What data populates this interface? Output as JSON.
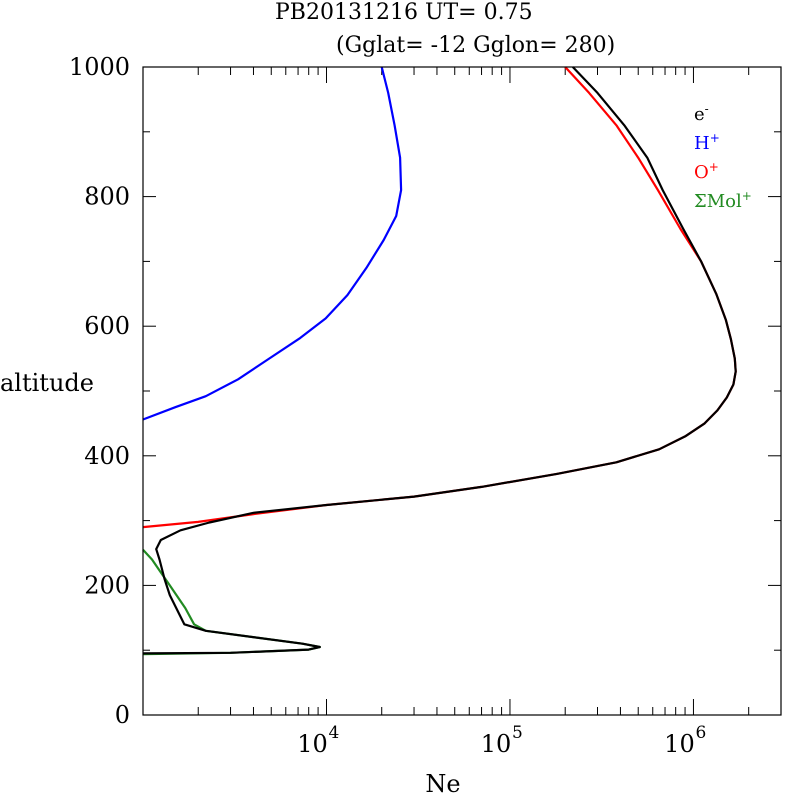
{
  "chart_data": {
    "type": "line",
    "title": "PB20131216   UT=  0.75",
    "subtitle": "(Gglat= -12   Gglon=  280)",
    "xlabel": "Ne",
    "ylabel": "altitude",
    "x_scale": "log",
    "xlim": [
      1000,
      3000000
    ],
    "ylim": [
      0,
      1000
    ],
    "y_ticks": [
      0,
      200,
      400,
      600,
      800,
      1000
    ],
    "x_ticks": [
      {
        "value": 10000,
        "base": "10",
        "exp": "4"
      },
      {
        "value": 100000,
        "base": "10",
        "exp": "5"
      },
      {
        "value": 1000000,
        "base": "10",
        "exp": "6"
      }
    ],
    "legend_position": "top-right",
    "series": [
      {
        "name": "e",
        "sup": "-",
        "color": "#000000",
        "points": [
          [
            1000,
            95
          ],
          [
            3000,
            96
          ],
          [
            8000,
            101
          ],
          [
            9200,
            105
          ],
          [
            7400,
            110
          ],
          [
            2200,
            130
          ],
          [
            1680,
            140
          ],
          [
            1400,
            185
          ],
          [
            1310,
            210
          ],
          [
            1230,
            240
          ],
          [
            1180,
            256
          ],
          [
            1250,
            270
          ],
          [
            1600,
            285
          ],
          [
            2300,
            297
          ],
          [
            4000,
            312
          ],
          [
            10000,
            324
          ],
          [
            30000,
            337
          ],
          [
            70000,
            352
          ],
          [
            180000,
            372
          ],
          [
            380000,
            390
          ],
          [
            650000,
            410
          ],
          [
            900000,
            430
          ],
          [
            1150000,
            450
          ],
          [
            1350000,
            470
          ],
          [
            1520000,
            490
          ],
          [
            1650000,
            510
          ],
          [
            1700000,
            530
          ],
          [
            1680000,
            550
          ],
          [
            1600000,
            580
          ],
          [
            1500000,
            610
          ],
          [
            1330000,
            650
          ],
          [
            1100000,
            700
          ],
          [
            880000,
            750
          ],
          [
            680000,
            810
          ],
          [
            560000,
            860
          ],
          [
            420000,
            910
          ],
          [
            300000,
            960
          ],
          [
            220000,
            1000
          ]
        ]
      },
      {
        "name": "H",
        "sup": "+",
        "color": "#0000ff",
        "points": [
          [
            1000,
            456
          ],
          [
            1500,
            475
          ],
          [
            2200,
            492
          ],
          [
            3300,
            518
          ],
          [
            4700,
            547
          ],
          [
            7200,
            582
          ],
          [
            9900,
            612
          ],
          [
            13000,
            648
          ],
          [
            16500,
            690
          ],
          [
            20500,
            733
          ],
          [
            24000,
            770
          ],
          [
            25500,
            810
          ],
          [
            25200,
            860
          ],
          [
            23500,
            910
          ],
          [
            21700,
            960
          ],
          [
            20000,
            1000
          ]
        ]
      },
      {
        "name": "O",
        "sup": "+",
        "color": "#ff0000",
        "points": [
          [
            1000,
            290
          ],
          [
            2000,
            298
          ],
          [
            4000,
            310
          ],
          [
            10000,
            324
          ],
          [
            30000,
            337
          ],
          [
            70000,
            352
          ],
          [
            180000,
            372
          ],
          [
            380000,
            390
          ],
          [
            650000,
            410
          ],
          [
            900000,
            430
          ],
          [
            1150000,
            450
          ],
          [
            1350000,
            470
          ],
          [
            1520000,
            490
          ],
          [
            1650000,
            510
          ],
          [
            1700000,
            530
          ],
          [
            1680000,
            550
          ],
          [
            1600000,
            580
          ],
          [
            1500000,
            610
          ],
          [
            1330000,
            650
          ],
          [
            1100000,
            700
          ],
          [
            850000,
            750
          ],
          [
            640000,
            810
          ],
          [
            500000,
            860
          ],
          [
            380000,
            910
          ],
          [
            270000,
            960
          ],
          [
            200000,
            1000
          ]
        ]
      },
      {
        "name": "ΣMol",
        "sup": "+",
        "color": "#228b22",
        "points": [
          [
            1000,
            255
          ],
          [
            1120,
            240
          ],
          [
            1250,
            220
          ],
          [
            1400,
            200
          ],
          [
            1700,
            165
          ],
          [
            1900,
            140
          ],
          [
            2200,
            130
          ],
          [
            7400,
            110
          ],
          [
            9200,
            105
          ],
          [
            8000,
            101
          ],
          [
            3000,
            96
          ],
          [
            1000,
            94
          ]
        ]
      }
    ]
  }
}
